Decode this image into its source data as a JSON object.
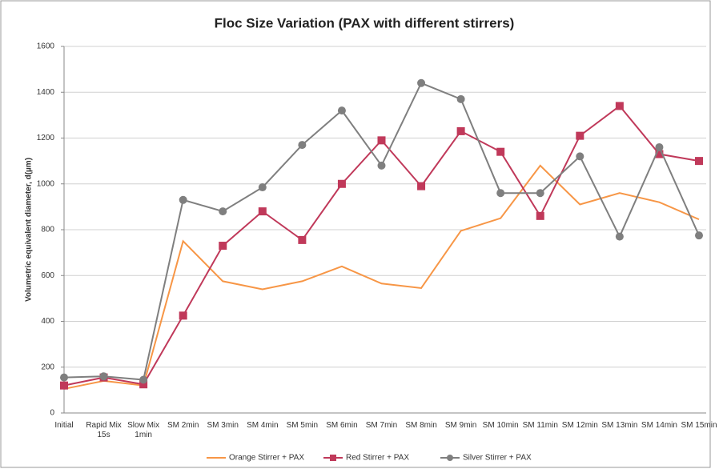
{
  "chart_data": {
    "type": "line",
    "title": "Floc Size Variation (PAX with different stirrers)",
    "y_label": "Volumetric equivalent diameter, d(µm)",
    "categories": [
      "Initial",
      "Rapid Mix 15s",
      "Slow Mix 1min",
      "SM 2min",
      "SM 3min",
      "SM 4min",
      "SM 5min",
      "SM 6min",
      "SM 7min",
      "SM 8min",
      "SM 9min",
      "SM 10min",
      "SM 11min",
      "SM 12min",
      "SM 13min",
      "SM 14min",
      "SM 15min"
    ],
    "series": [
      {
        "name": "Orange Stirrer + PAX",
        "color": "#f79646",
        "marker": "none",
        "values": [
          105,
          140,
          120,
          750,
          575,
          540,
          575,
          640,
          565,
          545,
          795,
          850,
          1080,
          910,
          960,
          920,
          845
        ]
      },
      {
        "name": "Red Stirrer + PAX",
        "color": "#c0395a",
        "marker": "square",
        "values": [
          120,
          155,
          125,
          425,
          730,
          880,
          755,
          1000,
          1190,
          990,
          1230,
          1140,
          860,
          1210,
          1340,
          1130,
          1100
        ]
      },
      {
        "name": "Silver Stirrer + PAX",
        "color": "#7f7f7f",
        "marker": "circle",
        "values": [
          155,
          160,
          145,
          930,
          880,
          985,
          1170,
          1320,
          1080,
          1440,
          1370,
          960,
          960,
          1120,
          770,
          1160,
          775
        ]
      }
    ],
    "ylim": [
      0,
      1600
    ],
    "yticks": [
      0,
      200,
      400,
      600,
      800,
      1000,
      1200,
      1400,
      1600
    ],
    "grid": true,
    "legend": "bottom"
  }
}
